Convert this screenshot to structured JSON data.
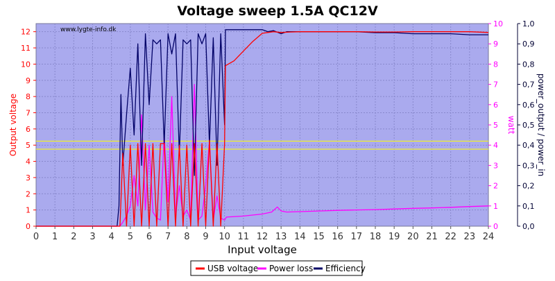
{
  "chart_data": {
    "type": "line",
    "title": "Voltage sweep 1.5A QC12V",
    "watermark": "www.lygte-info.dk",
    "xlabel": "Input voltage",
    "xlim": [
      0,
      24
    ],
    "x_ticks": [
      "0",
      "1",
      "2",
      "3",
      "4",
      "5",
      "6",
      "7",
      "8",
      "9",
      "10",
      "11",
      "12",
      "13",
      "14",
      "15",
      "16",
      "17",
      "18",
      "19",
      "20",
      "21",
      "22",
      "23",
      "24"
    ],
    "y_left": {
      "label": "Output voltage",
      "ylim": [
        0,
        12.5
      ],
      "ticks": [
        "0",
        "1",
        "2",
        "3",
        "4",
        "5",
        "6",
        "7",
        "8",
        "9",
        "10",
        "11",
        "12"
      ]
    },
    "y_mid": {
      "label": "watt",
      "ylim": [
        0,
        10
      ],
      "ticks": [
        "0",
        "1",
        "2",
        "3",
        "4",
        "5",
        "6",
        "7",
        "8",
        "9",
        "10"
      ]
    },
    "y_right": {
      "label": "power_output / power_in",
      "ylim": [
        0,
        1.0
      ],
      "ticks": [
        "0,0",
        "0,1",
        "0,2",
        "0,3",
        "0,4",
        "0,5",
        "0,6",
        "0,7",
        "0,8",
        "0,9",
        "1,0"
      ]
    },
    "reference_lines_left": [
      4.75,
      5.25
    ],
    "grid": true,
    "legend_position": "bottom-center",
    "series": [
      {
        "name": "USB voltage",
        "axis": "left",
        "color": "#ff0000",
        "x": [
          0,
          4.45,
          4.6,
          4.8,
          5.0,
          5.2,
          5.4,
          5.6,
          5.8,
          6.0,
          6.2,
          6.4,
          6.6,
          6.8,
          7.0,
          7.2,
          7.4,
          7.6,
          7.8,
          8.0,
          8.2,
          8.4,
          8.6,
          8.8,
          9.0,
          9.2,
          9.4,
          9.6,
          9.8,
          10.0,
          10.05,
          10.5,
          11.0,
          11.5,
          12.0,
          12.3,
          12.6,
          13.0,
          13.5,
          14,
          15,
          16,
          17,
          18,
          19,
          20,
          21,
          22,
          23,
          24
        ],
        "y": [
          0,
          0,
          4.5,
          0,
          5.0,
          0,
          5.1,
          0,
          5.1,
          0,
          5.1,
          0,
          5.1,
          5.1,
          0,
          5.1,
          0,
          5.0,
          0,
          5.0,
          0,
          5.1,
          0,
          5.1,
          0,
          5.3,
          0,
          5.1,
          0,
          5.1,
          9.9,
          10.2,
          10.8,
          11.4,
          11.9,
          11.95,
          12.0,
          11.95,
          11.98,
          12.0,
          12.0,
          12.0,
          12.0,
          11.98,
          11.98,
          12.0,
          12.0,
          12.0,
          12.0,
          11.95
        ]
      },
      {
        "name": "Power loss",
        "axis": "mid",
        "color": "#ff00ff",
        "x": [
          0,
          4.45,
          4.6,
          4.8,
          5.0,
          5.2,
          5.4,
          5.6,
          5.8,
          6.0,
          6.2,
          6.4,
          6.6,
          6.8,
          7.0,
          7.2,
          7.4,
          7.6,
          7.8,
          8.0,
          8.2,
          8.4,
          8.6,
          8.8,
          9.0,
          9.2,
          9.4,
          9.6,
          9.8,
          10.0,
          10.1,
          11,
          12,
          12.5,
          12.8,
          13.0,
          13.3,
          14,
          15,
          16,
          17,
          18,
          19,
          20,
          21,
          22,
          23,
          24
        ],
        "y": [
          0,
          0,
          0.2,
          0.5,
          1.0,
          2.5,
          1.0,
          5.5,
          0.8,
          4.0,
          0.7,
          0.4,
          0.3,
          4.5,
          1.2,
          6.4,
          0.5,
          2.0,
          0.5,
          0.8,
          0.3,
          7.0,
          0.3,
          0.5,
          2.0,
          4.2,
          0.3,
          1.5,
          0.4,
          0.3,
          0.45,
          0.5,
          0.6,
          0.7,
          0.95,
          0.75,
          0.7,
          0.72,
          0.75,
          0.78,
          0.8,
          0.82,
          0.85,
          0.88,
          0.9,
          0.93,
          0.97,
          1.0
        ]
      },
      {
        "name": "Efficiency",
        "axis": "right",
        "color": "#000066",
        "x": [
          0,
          4.3,
          4.4,
          4.5,
          4.6,
          4.8,
          5.0,
          5.2,
          5.4,
          5.6,
          5.8,
          6.0,
          6.2,
          6.4,
          6.6,
          6.8,
          7.0,
          7.2,
          7.4,
          7.6,
          7.8,
          8.0,
          8.2,
          8.4,
          8.6,
          8.8,
          9.0,
          9.2,
          9.4,
          9.6,
          9.8,
          10.0,
          10.05,
          11,
          12,
          12.3,
          12.6,
          13.0,
          13.3,
          14,
          15,
          16,
          17,
          18,
          19,
          20,
          21,
          22,
          23,
          24
        ],
        "y": [
          0,
          0,
          0.1,
          0.65,
          0.3,
          0.55,
          0.78,
          0.45,
          0.9,
          0.3,
          0.95,
          0.6,
          0.92,
          0.9,
          0.92,
          0.4,
          0.95,
          0.85,
          0.95,
          0.35,
          0.92,
          0.9,
          0.92,
          0.25,
          0.95,
          0.9,
          0.95,
          0.4,
          0.93,
          0.3,
          0.95,
          0.5,
          0.97,
          0.97,
          0.97,
          0.96,
          0.965,
          0.95,
          0.96,
          0.96,
          0.96,
          0.96,
          0.96,
          0.955,
          0.955,
          0.95,
          0.95,
          0.95,
          0.945,
          0.945
        ]
      }
    ]
  }
}
